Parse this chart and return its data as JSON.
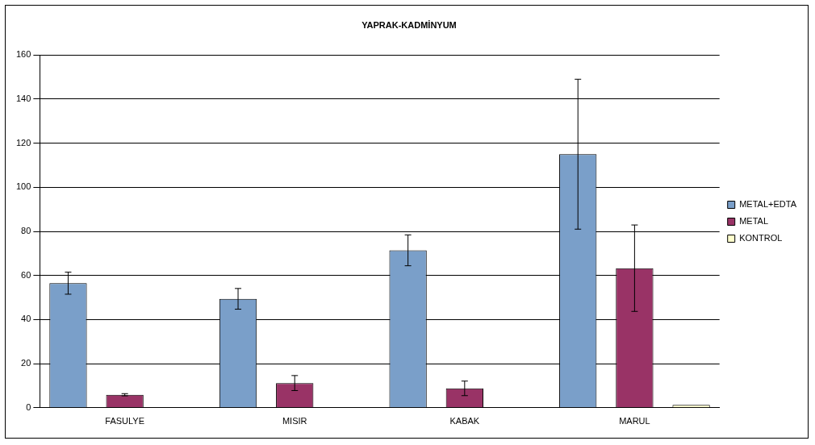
{
  "chart_data": {
    "type": "bar",
    "title": "YAPRAK-KADMİNYUM",
    "categories": [
      "FASULYE",
      "MISIR",
      "KABAK",
      "MARUL"
    ],
    "series": [
      {
        "name": "METAL+EDTA",
        "color": "#7a9fc9",
        "values": [
          56.5,
          49.4,
          71.4,
          115
        ],
        "errors": [
          5,
          4.7,
          7,
          34
        ]
      },
      {
        "name": "METAL",
        "color": "#993366",
        "values": [
          5.9,
          11.2,
          8.8,
          63.3
        ],
        "errors": [
          0.5,
          3.4,
          3.3,
          19.6
        ]
      },
      {
        "name": "KONTROL",
        "color": "#ffffcc",
        "values": [
          null,
          null,
          null,
          1.3
        ]
      }
    ],
    "ylim": [
      0,
      160
    ],
    "yticks": [
      0,
      20,
      40,
      60,
      80,
      100,
      120,
      140,
      160
    ],
    "grid": "y",
    "legend": "right"
  }
}
